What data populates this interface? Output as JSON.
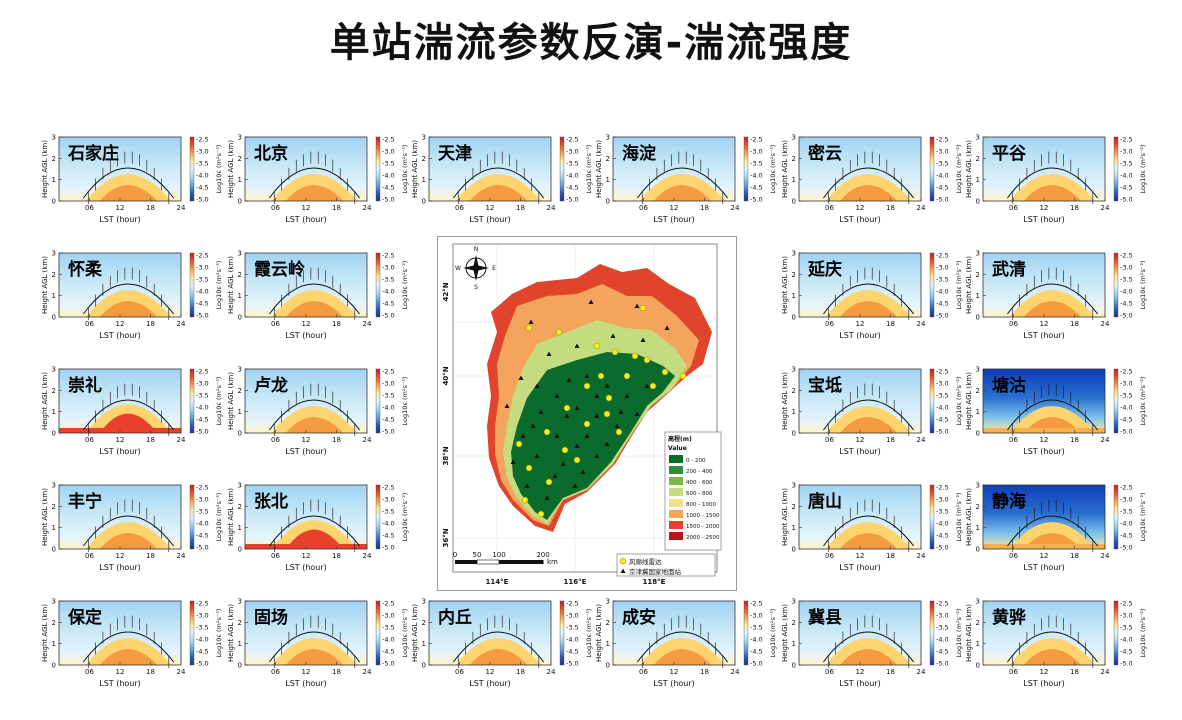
{
  "title": "单站湍流参数反演-湍流强度",
  "axes": {
    "ylabel": "Height AGL (km)",
    "xlabel": "LST (hour)",
    "xticks": [
      "06",
      "12",
      "18",
      "24"
    ],
    "yticks": [
      "0",
      "1",
      "2",
      "3"
    ],
    "colorbar_label": "Log10ε (m²s⁻³)",
    "colorbar_ticks": [
      "-2.5",
      "-3.0",
      "-3.5",
      "-4.0",
      "-4.5",
      "-5.0"
    ]
  },
  "stations": [
    {
      "name": "石家庄",
      "col": 0,
      "row": 0,
      "style": "normal"
    },
    {
      "name": "北京",
      "col": 1,
      "row": 0,
      "style": "normal"
    },
    {
      "name": "天津",
      "col": 2,
      "row": 0,
      "style": "normal"
    },
    {
      "name": "海淀",
      "col": 3,
      "row": 0,
      "style": "normal"
    },
    {
      "name": "密云",
      "col": 4,
      "row": 0,
      "style": "normal"
    },
    {
      "name": "平谷",
      "col": 5,
      "row": 0,
      "style": "normal"
    },
    {
      "name": "怀柔",
      "col": 0,
      "row": 1,
      "style": "normal"
    },
    {
      "name": "霞云岭",
      "col": 1,
      "row": 1,
      "style": "normal"
    },
    {
      "name": "延庆",
      "col": 4,
      "row": 1,
      "style": "normal"
    },
    {
      "name": "武清",
      "col": 5,
      "row": 1,
      "style": "normal"
    },
    {
      "name": "崇礼",
      "col": 0,
      "row": 2,
      "style": "warm"
    },
    {
      "name": "卢龙",
      "col": 1,
      "row": 2,
      "style": "normal"
    },
    {
      "name": "宝坻",
      "col": 4,
      "row": 2,
      "style": "normal"
    },
    {
      "name": "塘沽",
      "col": 5,
      "row": 2,
      "style": "dark"
    },
    {
      "name": "丰宁",
      "col": 0,
      "row": 3,
      "style": "normal"
    },
    {
      "name": "张北",
      "col": 1,
      "row": 3,
      "style": "warm"
    },
    {
      "name": "唐山",
      "col": 4,
      "row": 3,
      "style": "normal"
    },
    {
      "name": "静海",
      "col": 5,
      "row": 3,
      "style": "dark"
    },
    {
      "name": "保定",
      "col": 0,
      "row": 4,
      "style": "normal"
    },
    {
      "name": "固场",
      "col": 1,
      "row": 4,
      "style": "normal"
    },
    {
      "name": "内丘",
      "col": 2,
      "row": 4,
      "style": "normal"
    },
    {
      "name": "成安",
      "col": 3,
      "row": 4,
      "style": "normal"
    },
    {
      "name": "冀县",
      "col": 4,
      "row": 4,
      "style": "normal"
    },
    {
      "name": "黄骅",
      "col": 5,
      "row": 4,
      "style": "normal"
    }
  ],
  "map": {
    "lat_labels": [
      "42°N",
      "40°N",
      "38°N",
      "36°N"
    ],
    "lon_labels": [
      "114°E",
      "116°E",
      "118°E"
    ],
    "compass_letters": [
      "N",
      "S",
      "W",
      "E"
    ],
    "scale_ticks": [
      "0",
      "50",
      "100",
      "200"
    ],
    "scale_unit": "km",
    "legend_title": "高程(m)",
    "legend_value_label": "Value",
    "elevation_classes": [
      {
        "label": "0 - 200",
        "color": "#0b6b2d"
      },
      {
        "label": "200 - 400",
        "color": "#2f8f38"
      },
      {
        "label": "400 - 600",
        "color": "#79b847"
      },
      {
        "label": "600 - 800",
        "color": "#c4dc7e"
      },
      {
        "label": "800 - 1000",
        "color": "#f2df8a"
      },
      {
        "label": "1000 - 1500",
        "color": "#f4a45c"
      },
      {
        "label": "1500 - 2000",
        "color": "#e0452c"
      },
      {
        "label": "2000 - 2500",
        "color": "#b01a1a"
      }
    ],
    "station_legend": [
      {
        "label": "风廓线雷达",
        "symbol": "circle",
        "color": "#f5ee1e"
      },
      {
        "label": "京津冀国家地面站",
        "symbol": "triangle",
        "color": "#111111"
      }
    ]
  }
}
